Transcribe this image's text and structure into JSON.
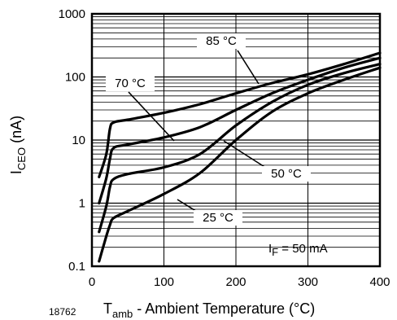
{
  "chart_data": {
    "type": "line",
    "xlabel": {
      "main": "T",
      "sub": "amb",
      "rest": " - Ambient Temperature (°C)"
    },
    "ylabel": {
      "main": "I",
      "sub": "CEO",
      "rest": " (nA)"
    },
    "figure_number": "18762",
    "x_ticks": [
      0,
      100,
      200,
      300,
      400
    ],
    "y_ticks": [
      0.1,
      1,
      10,
      100,
      1000
    ],
    "xlim": [
      0,
      400
    ],
    "ylim": [
      0.1,
      1000
    ],
    "y_scale": "log",
    "grid": true,
    "annotation": {
      "main": "I",
      "sub": "F",
      "rest": " = 50 mA"
    },
    "series": [
      {
        "name": "85 °C",
        "x": [
          10,
          20,
          25,
          30,
          50,
          100,
          150,
          200,
          250,
          300,
          350,
          400
        ],
        "y": [
          2.6,
          6,
          15,
          19,
          21,
          27,
          37,
          55,
          80,
          110,
          160,
          240
        ]
      },
      {
        "name": "70 °C",
        "x": [
          10,
          20,
          25,
          30,
          50,
          100,
          150,
          200,
          250,
          300,
          350,
          400
        ],
        "y": [
          1.0,
          2.5,
          5,
          7.5,
          8.5,
          11,
          16,
          30,
          55,
          90,
          140,
          200
        ]
      },
      {
        "name": "50 °C",
        "x": [
          10,
          20,
          25,
          30,
          50,
          100,
          150,
          200,
          250,
          300,
          350,
          400
        ],
        "y": [
          0.35,
          0.9,
          1.8,
          2.4,
          2.9,
          3.7,
          6,
          17,
          40,
          75,
          115,
          160
        ]
      },
      {
        "name": "25 °C",
        "x": [
          10,
          20,
          25,
          30,
          50,
          100,
          150,
          200,
          250,
          300,
          350,
          400
        ],
        "y": [
          0.12,
          0.3,
          0.45,
          0.58,
          0.75,
          1.4,
          3,
          10,
          28,
          55,
          90,
          140
        ]
      }
    ],
    "series_labels": [
      {
        "text": "85 °C"
      },
      {
        "text": "70 °C"
      },
      {
        "text": "50 °C"
      },
      {
        "text": "25 °C"
      }
    ]
  }
}
